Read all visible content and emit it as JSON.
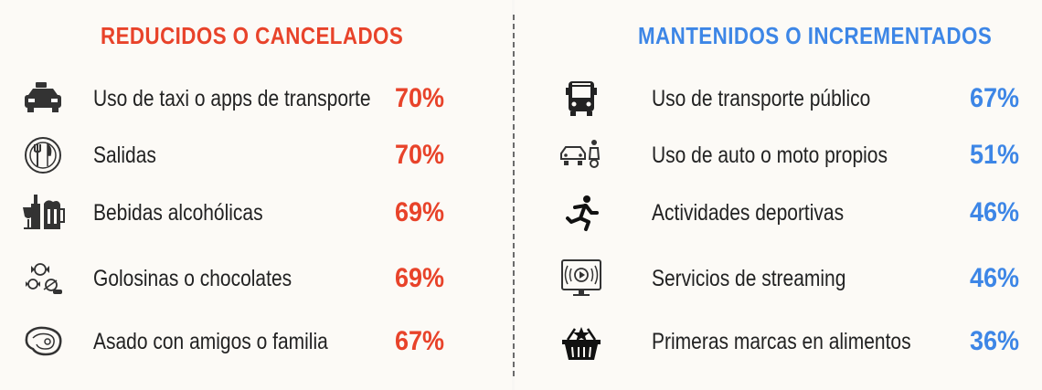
{
  "chart_data": [
    {
      "type": "table",
      "title": "REDUCIDOS O CANCELADOS",
      "unit": "%",
      "rows": [
        {
          "label": "Uso de taxi o apps de transporte",
          "value": 70,
          "display": "70%",
          "icon": "taxi-icon"
        },
        {
          "label": "Salidas",
          "value": 70,
          "display": "70%",
          "icon": "restaurant-plate-icon"
        },
        {
          "label": "Bebidas alcohólicas",
          "value": 69,
          "display": "69%",
          "icon": "drinks-icon"
        },
        {
          "label": "Golosinas o chocolates",
          "value": 69,
          "display": "69%",
          "icon": "candy-icon"
        },
        {
          "label": "Asado con amigos o familia",
          "value": 67,
          "display": "67%",
          "icon": "steak-icon"
        }
      ],
      "color": "#e8432a"
    },
    {
      "type": "table",
      "title": "MANTENIDOS O INCREMENTADOS",
      "unit": "%",
      "rows": [
        {
          "label": "Uso de transporte público",
          "value": 67,
          "display": "67%",
          "icon": "bus-icon"
        },
        {
          "label": "Uso de auto o moto propios",
          "value": 51,
          "display": "51%",
          "icon": "car-moto-icon"
        },
        {
          "label": "Actividades deportivas",
          "value": 46,
          "display": "46%",
          "icon": "runner-icon"
        },
        {
          "label": "Servicios de streaming",
          "value": 46,
          "display": "46%",
          "icon": "streaming-tv-icon"
        },
        {
          "label": "Primeras marcas en alimentos",
          "value": 36,
          "display": "36%",
          "icon": "basket-star-icon"
        }
      ],
      "color": "#3d86e6"
    }
  ]
}
